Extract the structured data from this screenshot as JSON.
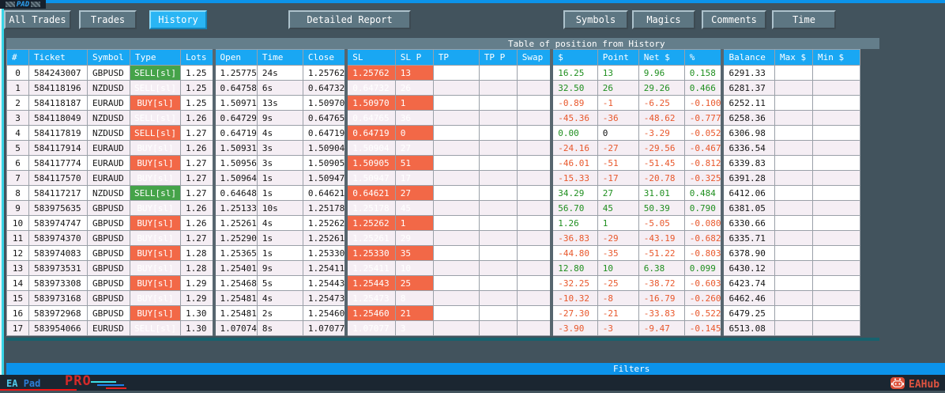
{
  "window": {
    "title": "PAD"
  },
  "toolbar": {
    "tabs": [
      {
        "label": "All Trades",
        "active": false
      },
      {
        "label": "Trades",
        "active": false
      },
      {
        "label": "History",
        "active": true
      },
      {
        "label": "Detailed Report",
        "active": false
      }
    ],
    "filter_buttons": [
      {
        "label": "Symbols"
      },
      {
        "label": "Magics"
      },
      {
        "label": "Comments"
      },
      {
        "label": "Time"
      }
    ]
  },
  "table": {
    "title": "Table of position from History",
    "headers": [
      "#",
      "Ticket",
      "Symbol",
      "Type",
      "Lots",
      "Open",
      "Time",
      "Close",
      "SL",
      "SL P",
      "TP",
      "TP P",
      "Swap",
      "$",
      "Point",
      "Net $",
      "%",
      "Balance",
      "Max $",
      "Min $"
    ],
    "rows": [
      {
        "n": "0",
        "ticket": "584243007",
        "symbol": "GBPUSD",
        "type": "SELL[sl]",
        "type_color": "green",
        "lots": "1.25",
        "open": "1.25775",
        "time": "24s",
        "close": "1.25762",
        "sl": "1.25762",
        "sl_p": "13",
        "tp": "",
        "tp_p": "",
        "swap": "",
        "usd": "16.25",
        "point": "13",
        "net": "9.96",
        "pct": "0.158",
        "balance": "6291.33",
        "max": "",
        "min": ""
      },
      {
        "n": "1",
        "ticket": "584118196",
        "symbol": "NZDUSD",
        "type": "SELL[sl]",
        "type_color": "green",
        "lots": "1.25",
        "open": "0.64758",
        "time": "6s",
        "close": "0.64732",
        "sl": "0.64732",
        "sl_p": "26",
        "tp": "",
        "tp_p": "",
        "swap": "",
        "usd": "32.50",
        "point": "26",
        "net": "29.26",
        "pct": "0.466",
        "balance": "6281.37",
        "max": "",
        "min": ""
      },
      {
        "n": "2",
        "ticket": "584118187",
        "symbol": "EURAUD",
        "type": "BUY[sl]",
        "type_color": "orange",
        "lots": "1.25",
        "open": "1.50971",
        "time": "13s",
        "close": "1.50970",
        "sl": "1.50970",
        "sl_p": "1",
        "tp": "",
        "tp_p": "",
        "swap": "",
        "usd": "-0.89",
        "point": "-1",
        "net": "-6.25",
        "pct": "-0.100",
        "balance": "6252.11",
        "max": "",
        "min": ""
      },
      {
        "n": "3",
        "ticket": "584118049",
        "symbol": "NZDUSD",
        "type": "SELL[sl]",
        "type_color": "orange",
        "lots": "1.26",
        "open": "0.64729",
        "time": "9s",
        "close": "0.64765",
        "sl": "0.64765",
        "sl_p": "36",
        "tp": "",
        "tp_p": "",
        "swap": "",
        "usd": "-45.36",
        "point": "-36",
        "net": "-48.62",
        "pct": "-0.777",
        "balance": "6258.36",
        "max": "",
        "min": ""
      },
      {
        "n": "4",
        "ticket": "584117819",
        "symbol": "NZDUSD",
        "type": "SELL[sl]",
        "type_color": "orange",
        "lots": "1.27",
        "open": "0.64719",
        "time": "4s",
        "close": "0.64719",
        "sl": "0.64719",
        "sl_p": "0",
        "tp": "",
        "tp_p": "",
        "swap": "",
        "usd": "0.00",
        "point": "0",
        "net": "-3.29",
        "pct": "-0.052",
        "balance": "6306.98",
        "max": "",
        "min": ""
      },
      {
        "n": "5",
        "ticket": "584117914",
        "symbol": "EURAUD",
        "type": "BUY[sl]",
        "type_color": "orange",
        "lots": "1.26",
        "open": "1.50931",
        "time": "3s",
        "close": "1.50904",
        "sl": "1.50904",
        "sl_p": "27",
        "tp": "",
        "tp_p": "",
        "swap": "",
        "usd": "-24.16",
        "point": "-27",
        "net": "-29.56",
        "pct": "-0.467",
        "balance": "6336.54",
        "max": "",
        "min": ""
      },
      {
        "n": "6",
        "ticket": "584117774",
        "symbol": "EURAUD",
        "type": "BUY[sl]",
        "type_color": "orange",
        "lots": "1.27",
        "open": "1.50956",
        "time": "3s",
        "close": "1.50905",
        "sl": "1.50905",
        "sl_p": "51",
        "tp": "",
        "tp_p": "",
        "swap": "",
        "usd": "-46.01",
        "point": "-51",
        "net": "-51.45",
        "pct": "-0.812",
        "balance": "6339.83",
        "max": "",
        "min": ""
      },
      {
        "n": "7",
        "ticket": "584117570",
        "symbol": "EURAUD",
        "type": "BUY[sl]",
        "type_color": "orange",
        "lots": "1.27",
        "open": "1.50964",
        "time": "1s",
        "close": "1.50947",
        "sl": "1.50947",
        "sl_p": "17",
        "tp": "",
        "tp_p": "",
        "swap": "",
        "usd": "-15.33",
        "point": "-17",
        "net": "-20.78",
        "pct": "-0.325",
        "balance": "6391.28",
        "max": "",
        "min": ""
      },
      {
        "n": "8",
        "ticket": "584117217",
        "symbol": "NZDUSD",
        "type": "SELL[sl]",
        "type_color": "green",
        "lots": "1.27",
        "open": "0.64648",
        "time": "1s",
        "close": "0.64621",
        "sl": "0.64621",
        "sl_p": "27",
        "tp": "",
        "tp_p": "",
        "swap": "",
        "usd": "34.29",
        "point": "27",
        "net": "31.01",
        "pct": "0.484",
        "balance": "6412.06",
        "max": "",
        "min": ""
      },
      {
        "n": "9",
        "ticket": "583975635",
        "symbol": "GBPUSD",
        "type": "BUY[sl]",
        "type_color": "green",
        "lots": "1.26",
        "open": "1.25133",
        "time": "10s",
        "close": "1.25178",
        "sl": "1.25178",
        "sl_p": "45",
        "tp": "",
        "tp_p": "",
        "swap": "",
        "usd": "56.70",
        "point": "45",
        "net": "50.39",
        "pct": "0.790",
        "balance": "6381.05",
        "max": "",
        "min": ""
      },
      {
        "n": "10",
        "ticket": "583974747",
        "symbol": "GBPUSD",
        "type": "BUY[sl]",
        "type_color": "orange",
        "lots": "1.26",
        "open": "1.25261",
        "time": "4s",
        "close": "1.25262",
        "sl": "1.25262",
        "sl_p": "1",
        "tp": "",
        "tp_p": "",
        "swap": "",
        "usd": "1.26",
        "point": "1",
        "net": "-5.05",
        "pct": "-0.080",
        "balance": "6330.66",
        "max": "",
        "min": ""
      },
      {
        "n": "11",
        "ticket": "583974370",
        "symbol": "GBPUSD",
        "type": "BUY[sl]",
        "type_color": "orange",
        "lots": "1.27",
        "open": "1.25290",
        "time": "1s",
        "close": "1.25261",
        "sl": "1.25261",
        "sl_p": "29",
        "tp": "",
        "tp_p": "",
        "swap": "",
        "usd": "-36.83",
        "point": "-29",
        "net": "-43.19",
        "pct": "-0.682",
        "balance": "6335.71",
        "max": "",
        "min": ""
      },
      {
        "n": "12",
        "ticket": "583974083",
        "symbol": "GBPUSD",
        "type": "BUY[sl]",
        "type_color": "orange",
        "lots": "1.28",
        "open": "1.25365",
        "time": "1s",
        "close": "1.25330",
        "sl": "1.25330",
        "sl_p": "35",
        "tp": "",
        "tp_p": "",
        "swap": "",
        "usd": "-44.80",
        "point": "-35",
        "net": "-51.22",
        "pct": "-0.803",
        "balance": "6378.90",
        "max": "",
        "min": ""
      },
      {
        "n": "13",
        "ticket": "583973531",
        "symbol": "GBPUSD",
        "type": "BUY[sl]",
        "type_color": "green",
        "lots": "1.28",
        "open": "1.25401",
        "time": "9s",
        "close": "1.25411",
        "sl": "1.25411",
        "sl_p": "10",
        "tp": "",
        "tp_p": "",
        "swap": "",
        "usd": "12.80",
        "point": "10",
        "net": "6.38",
        "pct": "0.099",
        "balance": "6430.12",
        "max": "",
        "min": ""
      },
      {
        "n": "14",
        "ticket": "583973308",
        "symbol": "GBPUSD",
        "type": "BUY[sl]",
        "type_color": "orange",
        "lots": "1.29",
        "open": "1.25468",
        "time": "5s",
        "close": "1.25443",
        "sl": "1.25443",
        "sl_p": "25",
        "tp": "",
        "tp_p": "",
        "swap": "",
        "usd": "-32.25",
        "point": "-25",
        "net": "-38.72",
        "pct": "-0.603",
        "balance": "6423.74",
        "max": "",
        "min": ""
      },
      {
        "n": "15",
        "ticket": "583973168",
        "symbol": "GBPUSD",
        "type": "BUY[sl]",
        "type_color": "orange",
        "lots": "1.29",
        "open": "1.25481",
        "time": "4s",
        "close": "1.25473",
        "sl": "1.25473",
        "sl_p": "8",
        "tp": "",
        "tp_p": "",
        "swap": "",
        "usd": "-10.32",
        "point": "-8",
        "net": "-16.79",
        "pct": "-0.260",
        "balance": "6462.46",
        "max": "",
        "min": ""
      },
      {
        "n": "16",
        "ticket": "583972968",
        "symbol": "GBPUSD",
        "type": "BUY[sl]",
        "type_color": "orange",
        "lots": "1.30",
        "open": "1.25481",
        "time": "2s",
        "close": "1.25460",
        "sl": "1.25460",
        "sl_p": "21",
        "tp": "",
        "tp_p": "",
        "swap": "",
        "usd": "-27.30",
        "point": "-21",
        "net": "-33.83",
        "pct": "-0.522",
        "balance": "6479.25",
        "max": "",
        "min": ""
      },
      {
        "n": "17",
        "ticket": "583954066",
        "symbol": "EURUSD",
        "type": "SELL[sl]",
        "type_color": "orange",
        "lots": "1.30",
        "open": "1.07074",
        "time": "8s",
        "close": "1.07077",
        "sl": "1.07077",
        "sl_p": "3",
        "tp": "",
        "tp_p": "",
        "swap": "",
        "usd": "-3.90",
        "point": "-3",
        "net": "-9.47",
        "pct": "-0.145",
        "balance": "6513.08",
        "max": "",
        "min": ""
      }
    ]
  },
  "footer": {
    "filters_label": "Filters",
    "brand_ea": "EA",
    "brand_pad": "Pad",
    "brand_pro": "PRO",
    "eahub_label": "EAHub"
  },
  "colors": {
    "accent_blue": "#19a7f3",
    "active_tab_blue": "#2ab5f4",
    "filters_blue": "#0c93ea",
    "loss_orange_bg": "#f26847",
    "win_green_bg": "#45a349",
    "profit_text_green": "#1f8f1f",
    "loss_text_red": "#e8582c",
    "eahub_orange": "#dd5340"
  }
}
